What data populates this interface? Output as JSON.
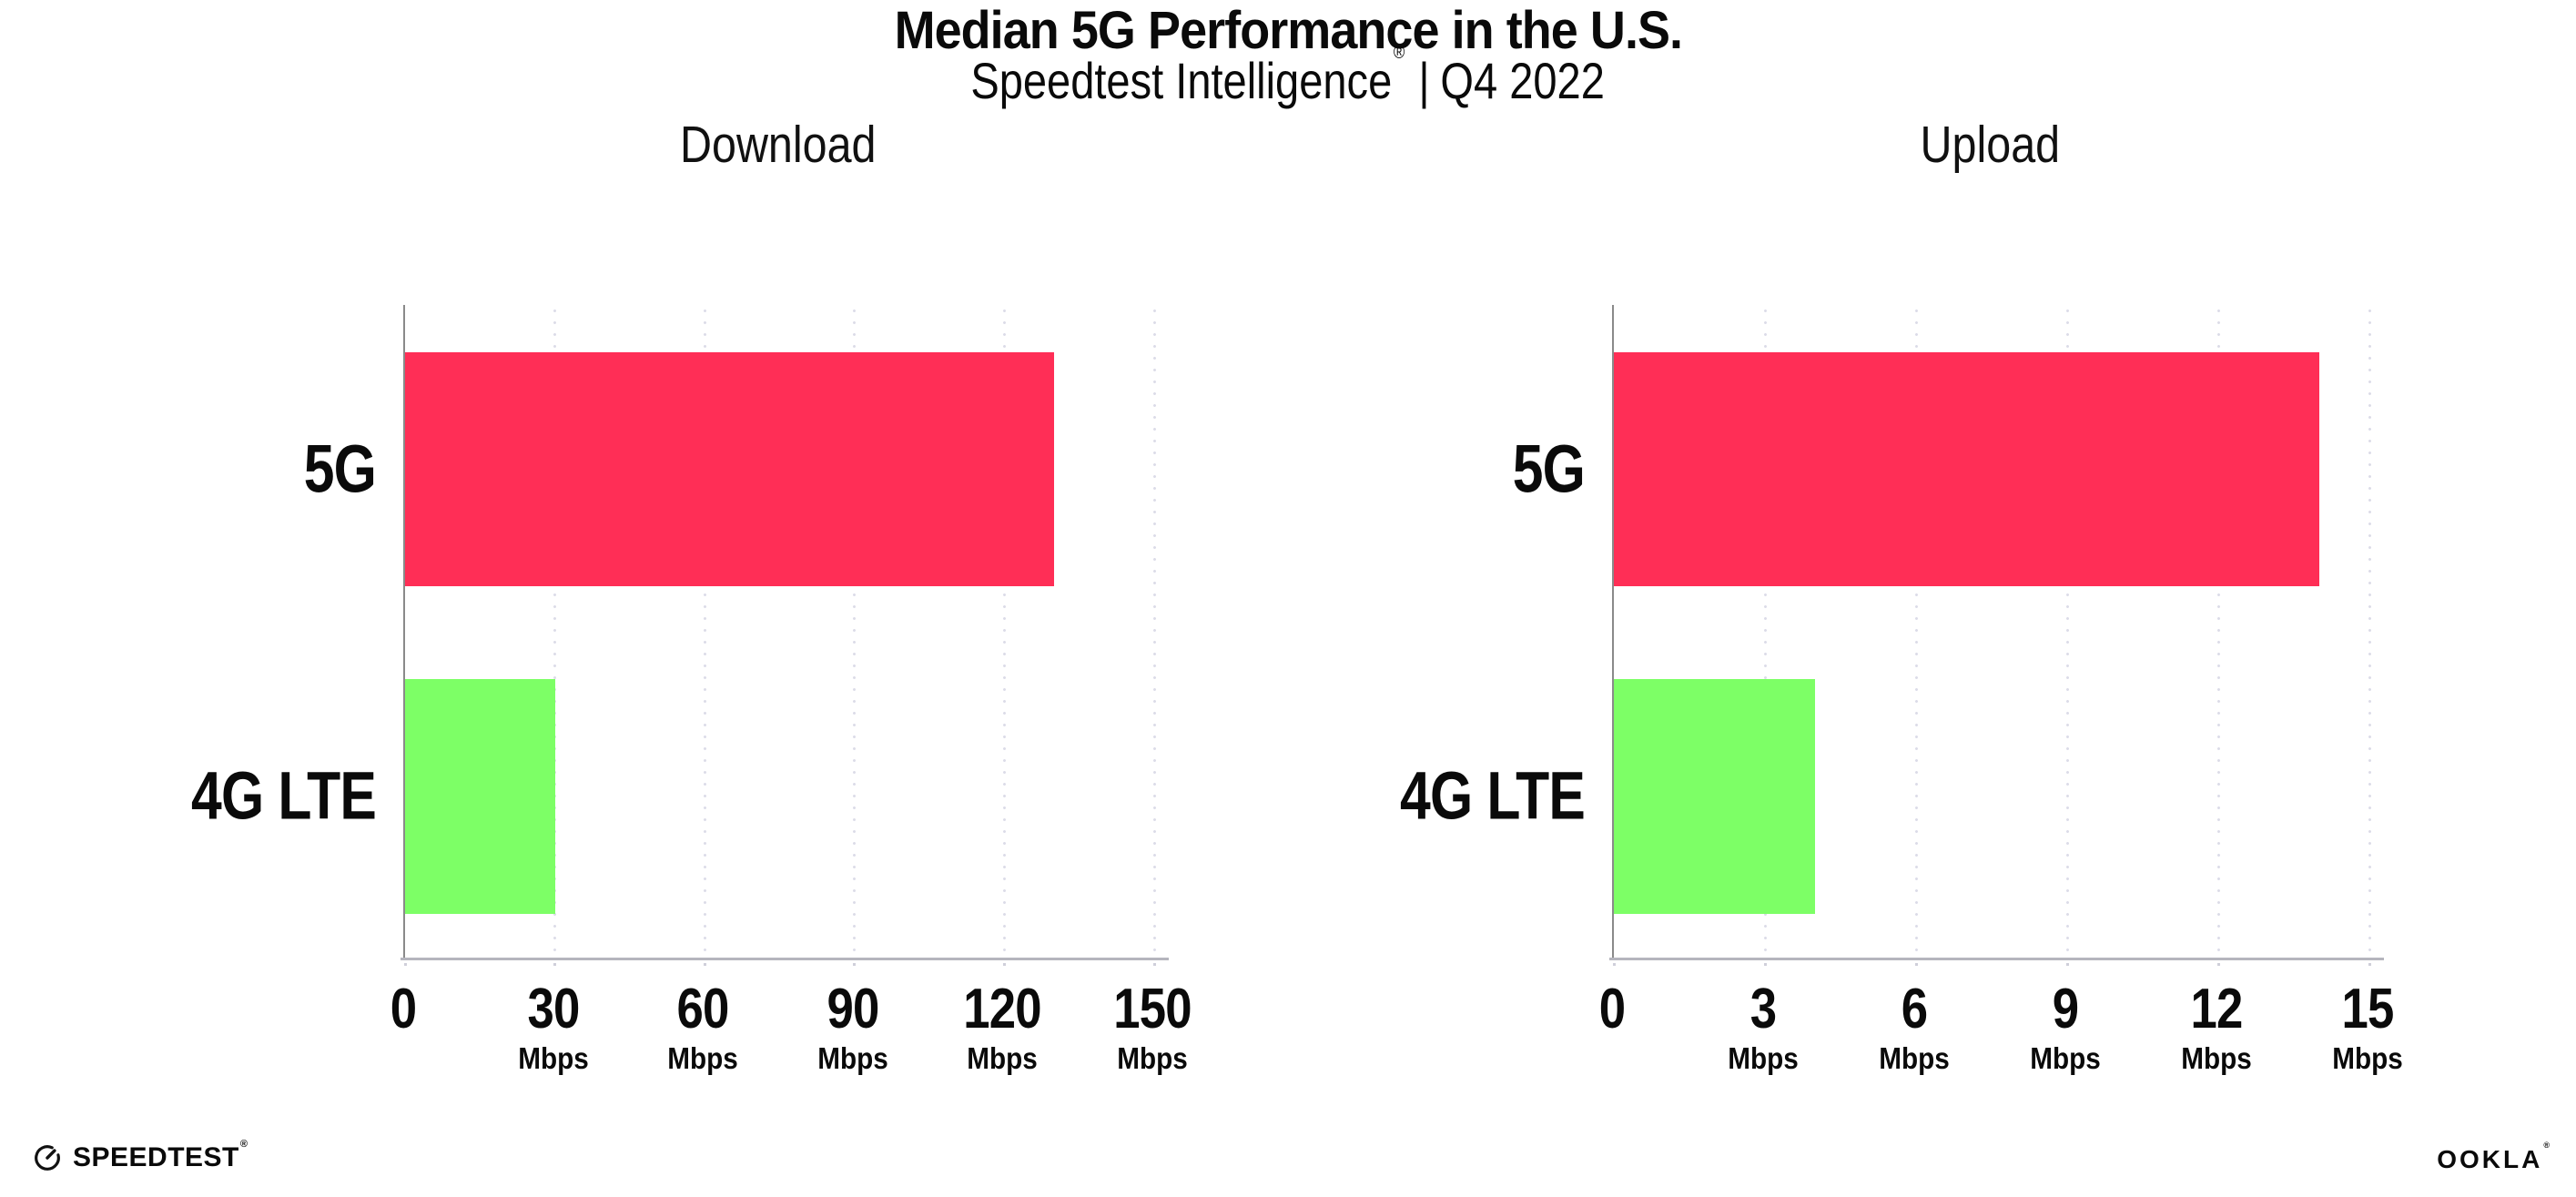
{
  "header": {
    "title": "Median 5G Performance in the U.S.",
    "subtitle_brand": "Speedtest Intelligence",
    "subtitle_reg": "®",
    "subtitle_sep": "|",
    "subtitle_period": "Q4 2022"
  },
  "footer": {
    "speedtest_logo_text": "SPEEDTEST",
    "speedtest_reg": "®",
    "ookla_logo_text": "OOKLA",
    "ookla_reg": "®"
  },
  "colors": {
    "bar_5g": "#ff2e56",
    "bar_4g_lte": "#7dff66",
    "x_axis_line": "#b5b5bd",
    "y_axis_line": "#8a8a8a",
    "gridline_dot": "#dcdce8",
    "text": "#0a0a0a",
    "background": "#ffffff"
  },
  "chart_data": [
    {
      "type": "bar",
      "orientation": "horizontal",
      "title": "Download",
      "categories": [
        "5G",
        "4G LTE"
      ],
      "values": [
        130,
        30
      ],
      "unit": "Mbps",
      "xlabel": "",
      "ylabel": "",
      "xlim": [
        0,
        150
      ],
      "xticks": [
        0,
        30,
        60,
        90,
        120,
        150
      ],
      "tick_unit_label": "Mbps",
      "unit_shown_on_zero_tick": false,
      "bar_colors": [
        "#ff2e56",
        "#7dff66"
      ],
      "grid": "vertical-dotted",
      "legend_position": "none"
    },
    {
      "type": "bar",
      "orientation": "horizontal",
      "title": "Upload",
      "categories": [
        "5G",
        "4G LTE"
      ],
      "values": [
        14,
        4
      ],
      "unit": "Mbps",
      "xlabel": "",
      "ylabel": "",
      "xlim": [
        0,
        15
      ],
      "xticks": [
        0,
        3,
        6,
        9,
        12,
        15
      ],
      "tick_unit_label": "Mbps",
      "unit_shown_on_zero_tick": false,
      "bar_colors": [
        "#ff2e56",
        "#7dff66"
      ],
      "grid": "vertical-dotted",
      "legend_position": "none"
    }
  ]
}
